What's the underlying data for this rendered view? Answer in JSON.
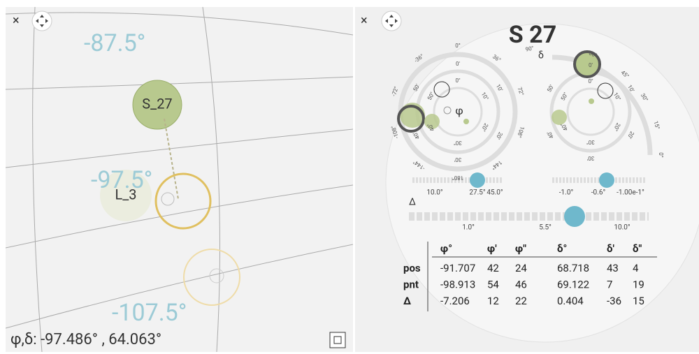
{
  "left_panel": {
    "close": "×",
    "latitude_labels": [
      "-87.5°",
      "-97.5°",
      "-107.5°"
    ],
    "selected_label": "S_27",
    "faded_label": "L_3",
    "status": "φ,δ: -97.486° , 64.063°"
  },
  "right_panel": {
    "close": "×",
    "title": "S 27",
    "phi_symbol": "φ",
    "delta_symbol": "δ",
    "phi_dial": {
      "degrees": [
        "0°",
        "36°",
        "72°",
        "108°",
        "144°",
        "180°",
        "-144°",
        "-108°",
        "-72°",
        "-36°"
      ],
      "minutes": [
        "0'",
        "10'",
        "20'",
        "30'",
        "40'",
        "50'"
      ],
      "seconds": [
        "0\"",
        "10\"",
        "20\"",
        "30\"",
        "40\"",
        "50\""
      ]
    },
    "delta_dial": {
      "degrees": [
        "90°",
        "60°",
        "45°",
        "30°",
        "15°",
        "0°"
      ],
      "minutes": [
        "0'",
        "10'",
        "20'",
        "30'",
        "40'",
        "50'"
      ],
      "seconds": [
        "0\"",
        "10\"",
        "20\"",
        "30\"",
        "40\"",
        "50\""
      ]
    },
    "phi_slider": [
      "10.0°",
      "27.5°",
      "45.0°"
    ],
    "delta_slider": [
      "-1.0°",
      "-0.6°",
      "-1.00e-1°"
    ],
    "delta_label": "Δ",
    "step_slider": [
      "1.0°",
      "5.5°",
      "10.0°"
    ],
    "table": {
      "columns": [
        "φ°",
        "φ'",
        "φ\"",
        "δ°",
        "δ'",
        "δ\""
      ],
      "rows": [
        {
          "label": "pos",
          "values": [
            -91.707,
            42,
            24,
            68.718,
            43,
            4
          ]
        },
        {
          "label": "pnt",
          "values": [
            -98.913,
            54,
            46,
            69.122,
            7,
            19
          ]
        },
        {
          "label": "Δ",
          "values": [
            -7.206,
            12,
            22,
            0.404,
            -36,
            15
          ]
        }
      ]
    }
  }
}
